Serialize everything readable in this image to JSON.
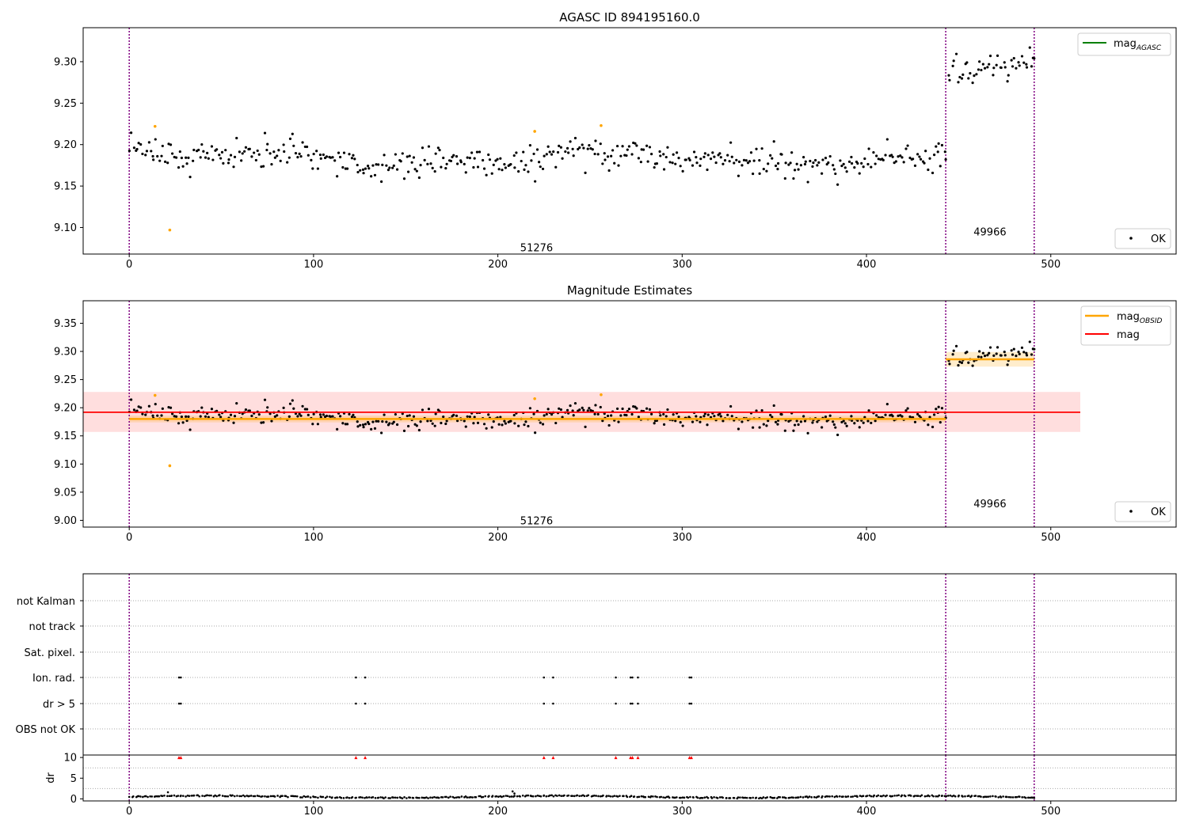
{
  "chart_data": [
    {
      "type": "scatter",
      "title": "AGASC ID 894195160.0",
      "xlabel": "",
      "ylabel": "",
      "xlim": [
        -25,
        568
      ],
      "ylim": [
        9.068,
        9.341
      ],
      "xticks": [
        "0",
        "100",
        "200",
        "300",
        "400",
        "500"
      ],
      "yticks": [
        "9.10",
        "9.15",
        "9.20",
        "9.25",
        "9.30"
      ],
      "obs_boundaries": [
        0,
        443,
        491
      ],
      "obs_labels": [
        {
          "text": "51276",
          "x": 221,
          "y": 9.076
        },
        {
          "text": "49966",
          "x": 467,
          "y": 9.095
        }
      ],
      "legend": {
        "position": "top-right",
        "entries": [
          {
            "label": "mag",
            "subscript": "AGASC",
            "color": "#008000",
            "kind": "line"
          }
        ]
      },
      "legend2": {
        "position": "bottom-right",
        "entries": [
          {
            "label": "OK",
            "color": "#000000",
            "kind": "point"
          }
        ]
      },
      "segments": [
        {
          "x_start": 0,
          "x_end": 443,
          "mean": 9.183,
          "amp": 0.007,
          "noise": 0.0095
        },
        {
          "x_start": 443,
          "x_end": 491,
          "mean": 9.287,
          "amp": 0.008,
          "noise": 0.008
        }
      ],
      "outliers": [
        {
          "x": 14,
          "y": 9.222
        },
        {
          "x": 22,
          "y": 9.097
        },
        {
          "x": 220,
          "y": 9.216
        },
        {
          "x": 256,
          "y": 9.223
        }
      ]
    },
    {
      "type": "scatter",
      "title": "Magnitude Estimates",
      "xlabel": "",
      "ylabel": "",
      "xlim": [
        -25,
        568
      ],
      "ylim": [
        8.988,
        9.39
      ],
      "xticks": [
        "0",
        "100",
        "200",
        "300",
        "400",
        "500"
      ],
      "yticks": [
        "9.00",
        "9.05",
        "9.10",
        "9.15",
        "9.20",
        "9.25",
        "9.30",
        "9.35"
      ],
      "obs_boundaries": [
        0,
        443,
        491
      ],
      "obs_labels": [
        {
          "text": "51276",
          "x": 221,
          "y": 9.0
        },
        {
          "text": "49966",
          "x": 467,
          "y": 9.03
        }
      ],
      "legend": {
        "position": "top-right",
        "entries": [
          {
            "label": "mag",
            "subscript": "OBSID",
            "color": "#ffa500",
            "kind": "line"
          },
          {
            "label": "mag",
            "subscript": "",
            "color": "#ff0000",
            "kind": "line"
          }
        ]
      },
      "legend2": {
        "position": "bottom-right",
        "entries": [
          {
            "label": "OK",
            "color": "#000000",
            "kind": "point"
          }
        ]
      },
      "mag_line": {
        "y": 9.192,
        "low": 9.157,
        "high": 9.228,
        "x_start": -25,
        "x_end": 516,
        "color": "#ff0000"
      },
      "obsid_lines": [
        {
          "x_start": 0,
          "x_end": 443,
          "y": 9.18,
          "low": 9.174,
          "high": 9.186
        },
        {
          "x_start": 443,
          "x_end": 491,
          "y": 9.286,
          "low": 9.273,
          "high": 9.299
        }
      ],
      "segments": [
        {
          "x_start": 0,
          "x_end": 443,
          "mean": 9.183,
          "amp": 0.007,
          "noise": 0.0095
        },
        {
          "x_start": 443,
          "x_end": 491,
          "mean": 9.287,
          "amp": 0.008,
          "noise": 0.008
        }
      ],
      "outliers": [
        {
          "x": 14,
          "y": 9.222
        },
        {
          "x": 22,
          "y": 9.097
        },
        {
          "x": 220,
          "y": 9.216
        },
        {
          "x": 256,
          "y": 9.223
        }
      ]
    },
    {
      "type": "scatter",
      "title": "",
      "xlim": [
        -25,
        568
      ],
      "flag_rows": [
        "not Kalman",
        "not track",
        "Sat. pixel.",
        "Ion. rad.",
        "dr > 5",
        "OBS not OK"
      ],
      "flag_points": {
        "Ion. rad.": [
          27,
          28,
          123,
          128,
          225,
          230,
          264,
          272,
          273,
          276,
          304,
          305
        ],
        "dr > 5": [
          27,
          28,
          123,
          128,
          225,
          230,
          264,
          272,
          273,
          276,
          304,
          305
        ]
      },
      "obs_boundaries": [
        0,
        443,
        491
      ]
    },
    {
      "type": "scatter",
      "title": "",
      "xlabel": "",
      "ylabel": "dr",
      "xlim": [
        -25,
        568
      ],
      "ylim": [
        -0.5,
        10.6
      ],
      "xticks": [
        "0",
        "100",
        "200",
        "300",
        "400",
        "500"
      ],
      "yticks": [
        "0",
        "5",
        "10"
      ],
      "obs_boundaries": [
        0,
        443,
        491
      ],
      "flagged_x": [
        27,
        28,
        123,
        128,
        225,
        230,
        264,
        272,
        273,
        276,
        304,
        305
      ],
      "flagged_y": 10,
      "baseline": {
        "x_start": 0,
        "x_end": 491,
        "mean": 0.5,
        "spread": 0.3
      },
      "spikes": [
        {
          "x": 21,
          "y": 1.6
        },
        {
          "x": 208,
          "y": 1.8
        },
        {
          "x": 209,
          "y": 1.3
        }
      ]
    }
  ]
}
